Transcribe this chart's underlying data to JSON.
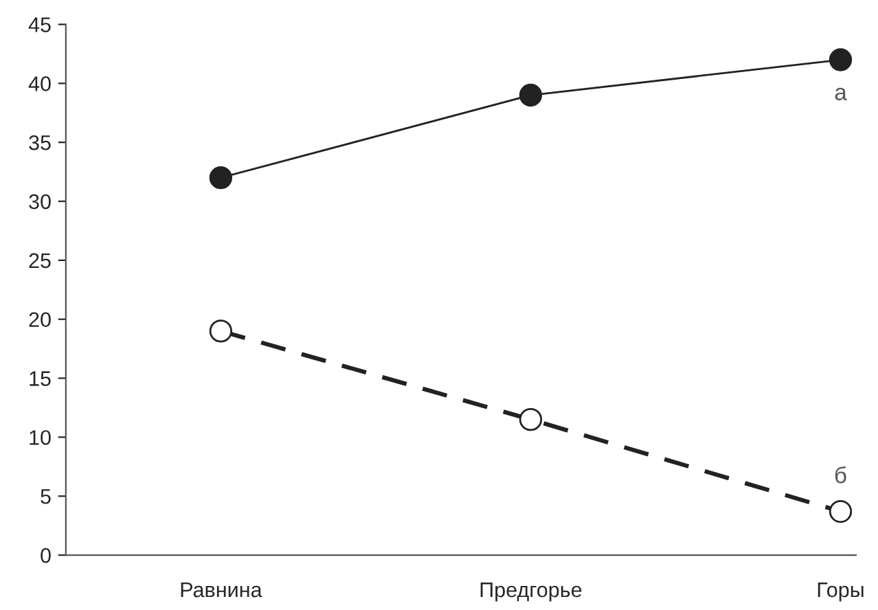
{
  "chart_data": {
    "type": "line",
    "categories": [
      "Равнина",
      "Предгорье",
      "Горы"
    ],
    "series": [
      {
        "name": "а",
        "color": "#222222",
        "values": [
          32,
          39,
          42
        ],
        "marker": "circle",
        "line_style": "solid"
      },
      {
        "name": "б",
        "color": "#222222",
        "values": [
          19,
          11.5,
          3.7
        ],
        "marker": "circle",
        "line_style": "dashed"
      }
    ],
    "ylim": [
      0,
      45
    ],
    "yticks": [
      0,
      5,
      10,
      15,
      20,
      25,
      30,
      35,
      40,
      45
    ],
    "grid": false,
    "legend": false
  }
}
